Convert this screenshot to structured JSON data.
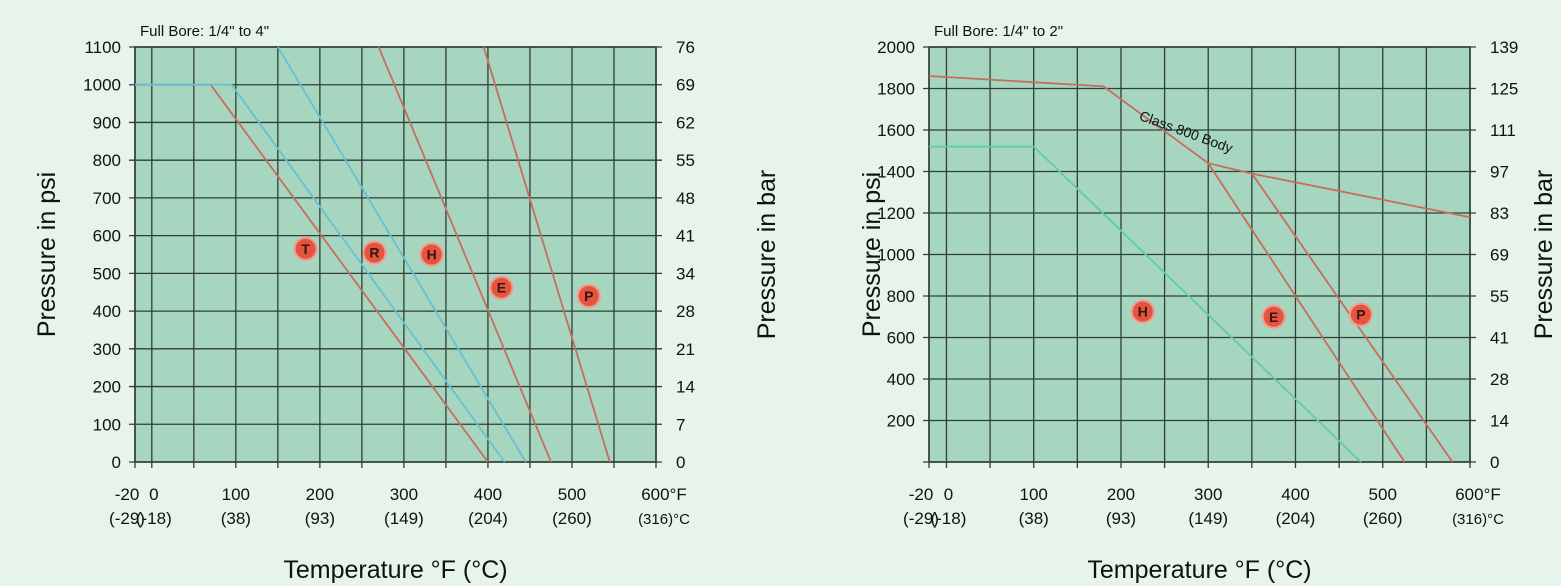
{
  "colors": {
    "background": "#e6f4ea",
    "plot_fill": "#a6d6c0",
    "grid": "#2f3d37",
    "red_line": "#c86c5e",
    "blue_line": "#69c0d0",
    "green_line": "#5fcf9a",
    "marker": "#e5543f"
  },
  "chart_data": [
    {
      "type": "line",
      "title": "Full Bore: 1/4\" to 4\"",
      "xlabel": "Temperature °F (°C)",
      "ylabel": "Pressure in psi",
      "y2label": "Pressure in bar",
      "xlim": [
        -20,
        600
      ],
      "ylim": [
        0,
        1100
      ],
      "x_ticks": [
        {
          "f": "-20",
          "c": "(-29)",
          "value": -20
        },
        {
          "f": "0",
          "c": "(-18)",
          "value": 0
        },
        {
          "f": "100",
          "c": "(38)",
          "value": 100
        },
        {
          "f": "200",
          "c": "(93)",
          "value": 200
        },
        {
          "f": "300",
          "c": "(149)",
          "value": 300
        },
        {
          "f": "400",
          "c": "(204)",
          "value": 400
        },
        {
          "f": "500",
          "c": "(260)",
          "value": 500
        },
        {
          "f": "600°F",
          "c": "(316)°C",
          "value": 600
        }
      ],
      "y_ticks": [
        "0",
        "100",
        "200",
        "300",
        "400",
        "500",
        "600",
        "700",
        "800",
        "900",
        "1000",
        "1100"
      ],
      "y2_ticks": [
        "0",
        "7",
        "14",
        "21",
        "28",
        "34",
        "41",
        "48",
        "55",
        "62",
        "69",
        "76"
      ],
      "series": [
        {
          "name": "T",
          "color": "red",
          "x": [
            -20,
            70,
            400
          ],
          "y": [
            1000,
            1000,
            0
          ],
          "marker": {
            "x": 183,
            "y": 565
          }
        },
        {
          "name": "R",
          "color": "blue",
          "x": [
            -20,
            95,
            420
          ],
          "y": [
            1000,
            1000,
            0
          ],
          "marker": {
            "x": 265,
            "y": 555
          }
        },
        {
          "name": "H",
          "color": "blue",
          "x": [
            150,
            445
          ],
          "y": [
            1100,
            0
          ],
          "marker": {
            "x": 333,
            "y": 550
          }
        },
        {
          "name": "E",
          "color": "red",
          "x": [
            270,
            475
          ],
          "y": [
            1100,
            0
          ],
          "marker": {
            "x": 416,
            "y": 462
          }
        },
        {
          "name": "P",
          "color": "red",
          "x": [
            395,
            545
          ],
          "y": [
            1100,
            0
          ],
          "marker": {
            "x": 520,
            "y": 440
          }
        }
      ]
    },
    {
      "type": "line",
      "title": "Full Bore: 1/4\" to 2\"",
      "xlabel": "Temperature °F (°C)",
      "ylabel": "Pressure in psi",
      "y2label": "Pressure in bar",
      "annotation": "Class 800 Body",
      "xlim": [
        -20,
        600
      ],
      "ylim": [
        0,
        2000
      ],
      "x_ticks": [
        {
          "f": "-20",
          "c": "(-29)",
          "value": -20
        },
        {
          "f": "0",
          "c": "(-18)",
          "value": 0
        },
        {
          "f": "100",
          "c": "(38)",
          "value": 100
        },
        {
          "f": "200",
          "c": "(93)",
          "value": 200
        },
        {
          "f": "300",
          "c": "(149)",
          "value": 300
        },
        {
          "f": "400",
          "c": "(204)",
          "value": 400
        },
        {
          "f": "500",
          "c": "(260)",
          "value": 500
        },
        {
          "f": "600°F",
          "c": "(316)°C",
          "value": 600
        }
      ],
      "y_ticks": [
        "",
        "200",
        "400",
        "600",
        "800",
        "1000",
        "1200",
        "1400",
        "1600",
        "1800",
        "2000"
      ],
      "y2_ticks": [
        "0",
        "14",
        "28",
        "41",
        "55",
        "69",
        "83",
        "97",
        "111",
        "125",
        "139"
      ],
      "series": [
        {
          "name": "Class 800 Body",
          "color": "red",
          "x": [
            -20,
            180,
            300,
            350,
            600
          ],
          "y": [
            1860,
            1810,
            1440,
            1390,
            1180
          ],
          "marker": null
        },
        {
          "name": "H",
          "color": "green",
          "x": [
            -20,
            100,
            475
          ],
          "y": [
            1520,
            1520,
            0
          ],
          "marker": {
            "x": 225,
            "y": 725
          }
        },
        {
          "name": "E",
          "color": "red",
          "x": [
            300,
            525
          ],
          "y": [
            1440,
            0
          ],
          "marker": {
            "x": 375,
            "y": 700
          }
        },
        {
          "name": "P",
          "color": "red",
          "x": [
            350,
            580
          ],
          "y": [
            1390,
            0
          ],
          "marker": {
            "x": 475,
            "y": 710
          }
        }
      ]
    }
  ]
}
